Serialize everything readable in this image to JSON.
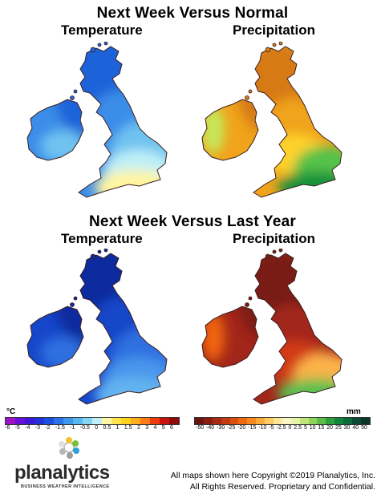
{
  "header": {
    "title_top": "Next Week Versus Normal",
    "title_bottom": "Next Week Versus Last Year",
    "temperature_label": "Temperature",
    "precipitation_label": "Precipitation"
  },
  "maps": {
    "normal_temperature": {
      "palette": "temperature",
      "tones": [
        "#1e63d9",
        "#3b8de8",
        "#6fc3f0",
        "#bff0f7",
        "#fff4a0",
        "#ffdd3a"
      ]
    },
    "normal_precipitation": {
      "palette": "precipitation",
      "tones": [
        "#d67a12",
        "#f0a31b",
        "#ffd22b",
        "#c6e85a",
        "#54c24a",
        "#16923a"
      ]
    },
    "lastyear_temperature": {
      "palette": "temperature",
      "tones": [
        "#0a2a9e",
        "#1646c9",
        "#2e6fe0",
        "#4a95ec",
        "#62b3f0",
        "#84cef4"
      ]
    },
    "lastyear_precipitation": {
      "palette": "precipitation",
      "tones": [
        "#7a1d12",
        "#a3261a",
        "#d23b12",
        "#f2650f",
        "#fbb24a",
        "#5cc04f"
      ]
    }
  },
  "legend": {
    "temperature": {
      "unit": "°C",
      "ticks": [
        "-6",
        "-5",
        "-4",
        "-3",
        "-2",
        "-1.5",
        "-1",
        "-0.5",
        "0",
        "0.5",
        "1",
        "1.5",
        "2",
        "3",
        "4",
        "5",
        "6"
      ],
      "colors": [
        "#9d12c7",
        "#6a10d6",
        "#3e16d6",
        "#2430d9",
        "#1e4fe0",
        "#2a72e6",
        "#3c97ec",
        "#59b8f0",
        "#86d4f4",
        "#bfeff7",
        "#fff7a6",
        "#ffe650",
        "#ffd21f",
        "#ffae1c",
        "#ff7b13",
        "#ee3c0f",
        "#c9150d",
        "#8f0a0a"
      ]
    },
    "precipitation": {
      "unit": "mm",
      "ticks": [
        "-50",
        "-40",
        "-30",
        "-25",
        "-20",
        "-15",
        "-10",
        "-5",
        "-2.5",
        "0",
        "2.5",
        "5",
        "10",
        "15",
        "20",
        "25",
        "30",
        "40",
        "50"
      ],
      "colors": [
        "#6a140f",
        "#8a1c12",
        "#a82a15",
        "#c43a12",
        "#de4f0f",
        "#ef6a0e",
        "#f7881b",
        "#fbab3a",
        "#fdcb63",
        "#fee79a",
        "#f9f7c8",
        "#e7f5a8",
        "#bfe67a",
        "#8fd35b",
        "#5cbd48",
        "#2ea13b",
        "#14863b",
        "#0e6a3a",
        "#0a4d34",
        "#0a3528"
      ]
    }
  },
  "footer": {
    "logo": "planalytics",
    "logo_tagline": "BUSINESS WEATHER INTELLIGENCE",
    "copyright_line1": "All maps shown here Copyright ©2019 Planalytics, Inc.",
    "copyright_line2": "All Rights Reserved. Proprietary and Confidential."
  }
}
